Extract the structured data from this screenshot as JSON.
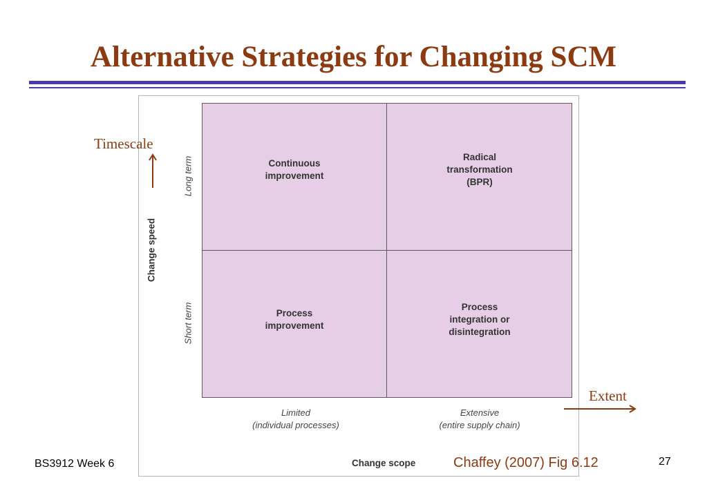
{
  "slide": {
    "title": "Alternative Strategies for Changing SCM",
    "footer_left": "BS3912 Week 6",
    "page_number": "27",
    "source": "Chaffey (2007) Fig 6.12",
    "annotations": {
      "timescale": "Timescale",
      "extent": "Extent"
    }
  },
  "matrix": {
    "y_axis_label": "Change speed",
    "y_ticks": [
      "Long term",
      "Short term"
    ],
    "x_axis_label": "Change scope",
    "x_ticks": [
      "Limited\n(individual processes)",
      "Extensive\n(entire supply chain)"
    ],
    "cells": {
      "top_left": "Continuous\nimprovement",
      "top_right": "Radical\ntransformation\n(BPR)",
      "bottom_left": "Process\nimprovement",
      "bottom_right": "Process\nintegration or\ndisintegration"
    }
  },
  "colors": {
    "title": "#8b3a12",
    "rule": "#4a3aa8",
    "quadrant_fill": "#e6cfe6",
    "arrow": "#8b3a12"
  }
}
